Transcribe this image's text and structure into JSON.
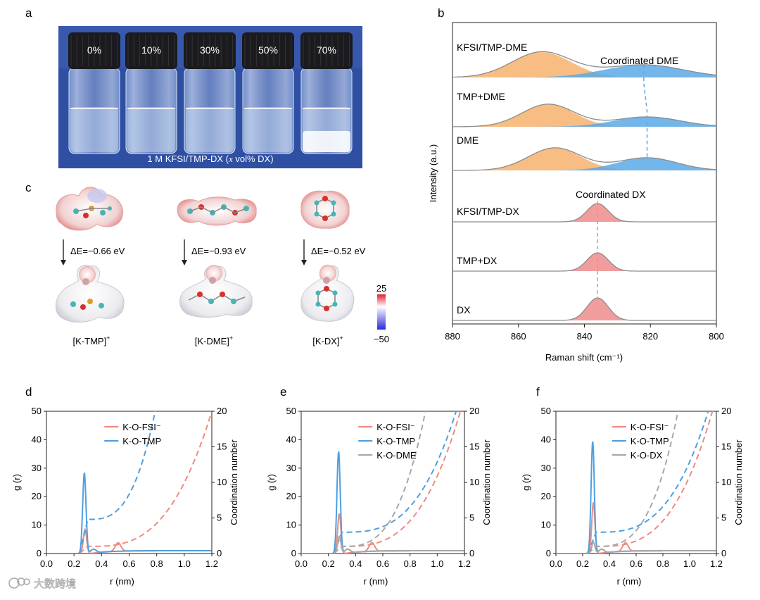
{
  "panels": {
    "a": {
      "letter": "a",
      "vial_labels": [
        "0%",
        "10%",
        "30%",
        "50%",
        "70%"
      ],
      "caption_prefix": "1 M KFSI/TMP-DX (",
      "caption_x": "x",
      "caption_suffix": " vol% DX)",
      "photo_bg": "#2d4fa6"
    },
    "b": {
      "letter": "b",
      "ylabel": "Intensity (a.u.)",
      "xlabel": "Raman shift (cm⁻¹)",
      "xticks": [
        "880",
        "860",
        "840",
        "820",
        "800"
      ],
      "samples": [
        "KFSI/TMP-DME",
        "TMP+DME",
        "DME",
        "KFSI/TMP-DX",
        "TMP+DX",
        "DX"
      ],
      "annot_dme": "Coordinated DME",
      "annot_dx": "Coordinated DX",
      "color_tmp": "#f6b16d",
      "color_dme": "#5aa9e6",
      "color_dx": "#f08c8c"
    },
    "c": {
      "letter": "c",
      "energies": [
        "ΔE=−0.66 eV",
        "ΔE=−0.93 eV",
        "ΔE=−0.52 eV"
      ],
      "complexes": [
        "[K-TMP]",
        "[K-DME]",
        "[K-DX]"
      ],
      "charge": "+",
      "scale_max": "25",
      "scale_min": "−50"
    },
    "d": {
      "letter": "d"
    },
    "e": {
      "letter": "e"
    },
    "f": {
      "letter": "f"
    }
  },
  "chart_data": [
    {
      "type": "line",
      "panel": "b",
      "x_axis": "Raman shift (cm⁻¹)",
      "xlim": [
        880,
        800
      ],
      "series": [
        {
          "name": "KFSI/TMP-DME",
          "peaks": [
            853,
            822
          ]
        },
        {
          "name": "TMP+DME",
          "peaks": [
            851,
            821
          ]
        },
        {
          "name": "DME",
          "peaks": [
            849,
            821
          ]
        },
        {
          "name": "KFSI/TMP-DX",
          "peaks": [
            836
          ]
        },
        {
          "name": "TMP+DX",
          "peaks": [
            836
          ]
        },
        {
          "name": "DX",
          "peaks": [
            836
          ]
        }
      ]
    },
    {
      "type": "line",
      "panel": "d",
      "xlabel": "r (nm)",
      "ylabel": "g (r)",
      "ylabel2": "Coordination number",
      "xlim": [
        0.0,
        1.2
      ],
      "ylim": [
        0,
        50
      ],
      "y2lim": [
        0,
        20
      ],
      "xticks": [
        "0.0",
        "0.2",
        "0.4",
        "0.6",
        "0.8",
        "1.0",
        "1.2"
      ],
      "yticks": [
        "0",
        "10",
        "20",
        "30",
        "40",
        "50"
      ],
      "y2ticks": [
        "0",
        "5",
        "10",
        "15",
        "20"
      ],
      "series": [
        {
          "name": "K-O-FSI⁻",
          "color": "#ef8a80",
          "peak_r": 0.28,
          "peak_g": 8.5
        },
        {
          "name": "K-O-TMP",
          "color": "#4f9fe0",
          "peak_r": 0.275,
          "peak_g": 28.5
        }
      ]
    },
    {
      "type": "line",
      "panel": "e",
      "xlabel": "r (nm)",
      "ylabel": "g (r)",
      "ylabel2": "Coordination number",
      "xlim": [
        0.0,
        1.2
      ],
      "ylim": [
        0,
        50
      ],
      "y2lim": [
        0,
        20
      ],
      "xticks": [
        "0.0",
        "0.2",
        "0.4",
        "0.6",
        "0.8",
        "1.0",
        "1.2"
      ],
      "yticks": [
        "0",
        "10",
        "20",
        "30",
        "40",
        "50"
      ],
      "y2ticks": [
        "0",
        "5",
        "10",
        "15",
        "20"
      ],
      "series": [
        {
          "name": "K-O-FSI⁻",
          "color": "#ef8a80",
          "peak_r": 0.28,
          "peak_g": 14
        },
        {
          "name": "K-O-TMP",
          "color": "#4f9fe0",
          "peak_r": 0.275,
          "peak_g": 36
        },
        {
          "name": "K-O-DME",
          "color": "#a8a8a8",
          "peak_r": 0.28,
          "peak_g": 6
        }
      ]
    },
    {
      "type": "line",
      "panel": "f",
      "xlabel": "r (nm)",
      "ylabel": "g (r)",
      "ylabel2": "Coordination number",
      "xlim": [
        0.0,
        1.2
      ],
      "ylim": [
        0,
        50
      ],
      "y2lim": [
        0,
        20
      ],
      "xticks": [
        "0.0",
        "0.2",
        "0.4",
        "0.6",
        "0.8",
        "1.0",
        "1.2"
      ],
      "yticks": [
        "0",
        "10",
        "20",
        "30",
        "40",
        "50"
      ],
      "y2ticks": [
        "0",
        "5",
        "10",
        "15",
        "20"
      ],
      "series": [
        {
          "name": "K-O-FSI⁻",
          "color": "#ef8a80",
          "peak_r": 0.28,
          "peak_g": 18
        },
        {
          "name": "K-O-TMP",
          "color": "#4f9fe0",
          "peak_r": 0.275,
          "peak_g": 39.5
        },
        {
          "name": "K-O-DX",
          "color": "#a8a8a8",
          "peak_r": 0.28,
          "peak_g": 4
        }
      ]
    }
  ],
  "watermark": "大数跨境"
}
